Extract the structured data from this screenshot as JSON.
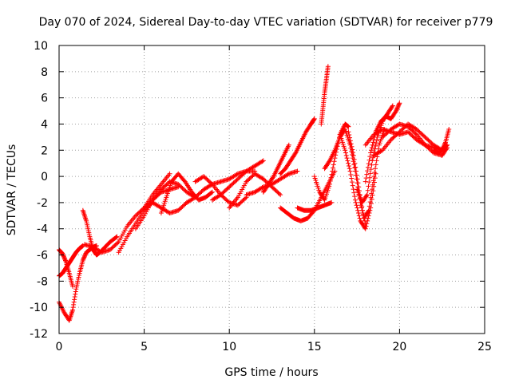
{
  "chart_data": {
    "type": "scatter",
    "title": "Day 070 of 2024, Sidereal Day-to-day VTEC variation (SDTVAR) for receiver p779",
    "xlabel": "GPS time / hours",
    "ylabel": "SDTVAR / TECUs",
    "xlim": [
      0,
      25
    ],
    "ylim": [
      -12,
      10
    ],
    "xticks": [
      0,
      5,
      10,
      15,
      20,
      25
    ],
    "yticks": [
      -12,
      -10,
      -8,
      -6,
      -4,
      -2,
      0,
      2,
      4,
      6,
      8,
      10
    ],
    "grid": true,
    "marker": "+",
    "color": "#ff0000",
    "series": [
      {
        "x": [
          0.0,
          0.3,
          0.6,
          0.8,
          1.0,
          1.2,
          1.4,
          1.6,
          1.8,
          2.0,
          2.2
        ],
        "y": [
          -9.6,
          -10.4,
          -11.0,
          -10.2,
          -8.6,
          -7.4,
          -6.4,
          -5.8,
          -5.6,
          -5.4,
          -5.3
        ]
      },
      {
        "x": [
          0.0,
          0.2,
          0.4,
          0.6,
          0.8,
          1.0,
          1.2,
          1.4
        ],
        "y": [
          -7.6,
          -7.4,
          -7.0,
          -6.6,
          -6.2,
          -5.8,
          -5.5,
          -5.3
        ]
      },
      {
        "x": [
          0.0,
          0.2,
          0.4,
          0.6,
          0.8
        ],
        "y": [
          -5.6,
          -5.9,
          -6.5,
          -7.4,
          -8.4
        ]
      },
      {
        "x": [
          1.4,
          1.6,
          1.8,
          2.0,
          2.2,
          2.4,
          2.7,
          3.0,
          3.4
        ],
        "y": [
          -2.6,
          -3.4,
          -4.6,
          -5.6,
          -6.0,
          -5.8,
          -5.4,
          -5.0,
          -4.6
        ]
      },
      {
        "x": [
          1.5,
          2.0,
          2.5,
          3.0,
          3.5,
          4.0,
          4.5,
          5.0,
          5.5,
          6.0,
          6.5
        ],
        "y": [
          -5.2,
          -5.4,
          -5.8,
          -5.6,
          -5.0,
          -3.8,
          -3.0,
          -2.4,
          -1.4,
          -0.6,
          0.2
        ]
      },
      {
        "x": [
          3.5,
          4.0,
          4.5,
          5.0,
          5.5,
          6.0,
          6.5,
          7.0,
          7.5
        ],
        "y": [
          -5.8,
          -4.6,
          -3.6,
          -2.6,
          -2.0,
          -2.4,
          -2.8,
          -2.6,
          -2.0
        ]
      },
      {
        "x": [
          4.5,
          5.0,
          5.5,
          6.0,
          6.5,
          7.0
        ],
        "y": [
          -4.0,
          -3.0,
          -1.8,
          -1.2,
          -1.0,
          -0.8
        ]
      },
      {
        "x": [
          5.0,
          5.5,
          6.0,
          6.5,
          7.0,
          7.5,
          8.0
        ],
        "y": [
          -2.4,
          -1.8,
          -1.0,
          -0.4,
          -0.6,
          -1.2,
          -1.6
        ]
      },
      {
        "x": [
          6.0,
          6.3,
          6.6,
          7.0,
          7.4,
          7.8,
          8.2,
          8.6,
          9.0
        ],
        "y": [
          -2.8,
          -1.6,
          -0.4,
          0.2,
          -0.4,
          -1.2,
          -1.8,
          -1.6,
          -1.2
        ]
      },
      {
        "x": [
          7.5,
          8.0,
          8.5,
          9.0,
          9.5,
          10.0,
          10.5,
          11.0,
          11.5
        ],
        "y": [
          -2.0,
          -1.6,
          -1.0,
          -0.6,
          -0.4,
          -0.2,
          0.2,
          0.4,
          0.4
        ]
      },
      {
        "x": [
          8.0,
          8.5,
          9.0,
          9.5,
          10.0,
          10.5,
          11.0
        ],
        "y": [
          -0.4,
          0.0,
          -0.6,
          -1.4,
          -2.0,
          -2.2,
          -1.6
        ]
      },
      {
        "x": [
          9.0,
          9.5,
          10.0,
          10.5,
          11.0,
          11.5,
          12.0
        ],
        "y": [
          -1.8,
          -1.4,
          -0.8,
          -0.2,
          0.4,
          0.8,
          1.2
        ]
      },
      {
        "x": [
          10.0,
          10.5,
          11.0,
          11.5,
          12.0,
          12.5,
          13.0
        ],
        "y": [
          -2.4,
          -1.6,
          -0.4,
          0.2,
          -0.2,
          -0.8,
          -1.4
        ]
      },
      {
        "x": [
          11.0,
          11.5,
          12.0,
          12.5,
          13.0,
          13.5,
          14.0
        ],
        "y": [
          -1.4,
          -1.2,
          -0.8,
          -0.6,
          -0.2,
          0.2,
          0.4
        ]
      },
      {
        "x": [
          12.0,
          12.3,
          12.6,
          12.9,
          13.2,
          13.5
        ],
        "y": [
          -1.2,
          -0.6,
          0.0,
          0.8,
          1.6,
          2.4
        ]
      },
      {
        "x": [
          13.0,
          13.3,
          13.6,
          13.9,
          14.2,
          14.5,
          14.8,
          15.0
        ],
        "y": [
          0.2,
          0.6,
          1.2,
          1.8,
          2.6,
          3.4,
          4.0,
          4.4
        ]
      },
      {
        "x": [
          13.0,
          13.4,
          13.8,
          14.2,
          14.6,
          15.0,
          15.4,
          15.8,
          16.2
        ],
        "y": [
          -2.4,
          -2.8,
          -3.2,
          -3.4,
          -3.2,
          -2.6,
          -1.6,
          -0.6,
          0.4
        ]
      },
      {
        "x": [
          14.0,
          14.4,
          14.8,
          15.2,
          15.6,
          16.0
        ],
        "y": [
          -2.4,
          -2.6,
          -2.6,
          -2.4,
          -2.2,
          -2.0
        ]
      },
      {
        "x": [
          15.4,
          15.5,
          15.6,
          15.7,
          15.8
        ],
        "y": [
          4.0,
          5.2,
          6.4,
          7.4,
          8.4
        ]
      },
      {
        "x": [
          15.0,
          15.3,
          15.6,
          15.9,
          16.2,
          16.5,
          16.8,
          17.0
        ],
        "y": [
          0.0,
          -1.2,
          -1.8,
          -0.6,
          1.4,
          3.2,
          4.0,
          3.8
        ]
      },
      {
        "x": [
          15.6,
          15.9,
          16.2,
          16.5,
          16.8,
          17.1,
          17.4,
          17.7,
          18.0
        ],
        "y": [
          0.6,
          1.2,
          2.0,
          3.0,
          3.6,
          2.4,
          0.4,
          -2.0,
          -3.6
        ]
      },
      {
        "x": [
          16.5,
          16.8,
          17.1,
          17.4,
          17.7,
          18.0,
          18.3,
          18.6
        ],
        "y": [
          3.2,
          2.0,
          0.4,
          -1.8,
          -3.4,
          -4.0,
          -2.4,
          0.2
        ]
      },
      {
        "x": [
          17.0,
          17.3,
          17.6,
          17.9,
          18.2,
          18.5,
          18.8,
          19.1
        ],
        "y": [
          3.4,
          1.6,
          -0.8,
          -3.2,
          -2.6,
          0.0,
          2.4,
          3.6
        ]
      },
      {
        "x": [
          17.5,
          17.8,
          18.1,
          18.4,
          18.7,
          19.0,
          19.3,
          19.6
        ],
        "y": [
          -1.0,
          -2.0,
          -1.4,
          1.2,
          3.0,
          4.2,
          4.8,
          5.4
        ]
      },
      {
        "x": [
          18.0,
          18.3,
          18.6,
          18.9,
          19.2,
          19.5,
          19.8,
          20.0
        ],
        "y": [
          -0.4,
          1.8,
          3.4,
          4.2,
          4.6,
          4.4,
          5.0,
          5.6
        ]
      },
      {
        "x": [
          18.0,
          18.5,
          19.0,
          19.5,
          20.0,
          20.5,
          21.0,
          21.5,
          22.0,
          22.5,
          22.8
        ],
        "y": [
          2.4,
          3.2,
          3.6,
          3.4,
          3.2,
          3.4,
          2.8,
          2.4,
          2.2,
          2.0,
          2.4
        ]
      },
      {
        "x": [
          18.5,
          19.0,
          19.5,
          20.0,
          20.5,
          21.0,
          21.5,
          22.0,
          22.5
        ],
        "y": [
          1.6,
          2.0,
          2.8,
          3.4,
          4.0,
          3.6,
          3.0,
          2.4,
          2.0
        ]
      },
      {
        "x": [
          19.0,
          19.5,
          20.0,
          20.5,
          21.0,
          21.5,
          22.0,
          22.5,
          22.8
        ],
        "y": [
          3.0,
          3.6,
          4.0,
          3.8,
          3.2,
          2.4,
          1.8,
          1.6,
          2.2
        ]
      },
      {
        "x": [
          22.0,
          22.3,
          22.5,
          22.7,
          22.9
        ],
        "y": [
          2.0,
          1.8,
          2.0,
          2.6,
          3.6
        ]
      }
    ]
  }
}
